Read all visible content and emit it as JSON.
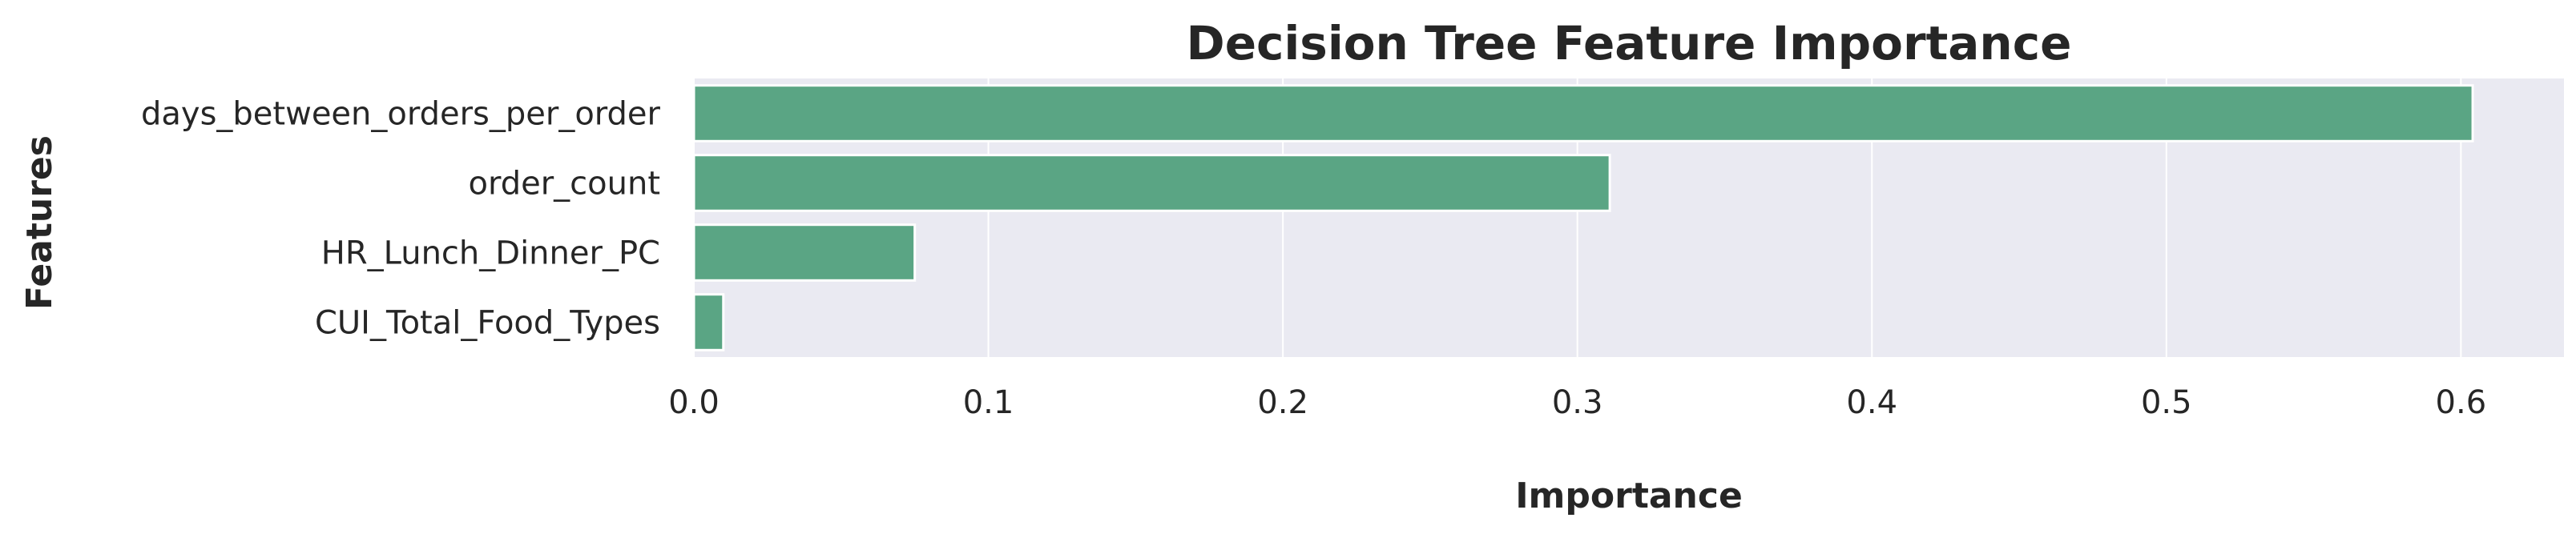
{
  "chart_data": {
    "type": "bar",
    "orientation": "horizontal",
    "title": "Decision Tree Feature Importance",
    "xlabel": "Importance",
    "ylabel": "Features",
    "categories": [
      "days_between_orders_per_order",
      "order_count",
      "HR_Lunch_Dinner_PC",
      "CUI_Total_Food_Types"
    ],
    "values": [
      0.604,
      0.311,
      0.075,
      0.01
    ],
    "xlim": [
      0,
      0.635
    ],
    "xticks": [
      0.0,
      0.1,
      0.2,
      0.3,
      0.4,
      0.5,
      0.6
    ],
    "xtick_labels": [
      "0.0",
      "0.1",
      "0.2",
      "0.3",
      "0.4",
      "0.5",
      "0.6"
    ],
    "grid": true,
    "colors": {
      "bar": "#5aa584",
      "bar_edge": "#ffffff",
      "plot_background": "#eaeaf2",
      "grid": "#ffffff",
      "text": "#262626"
    }
  }
}
